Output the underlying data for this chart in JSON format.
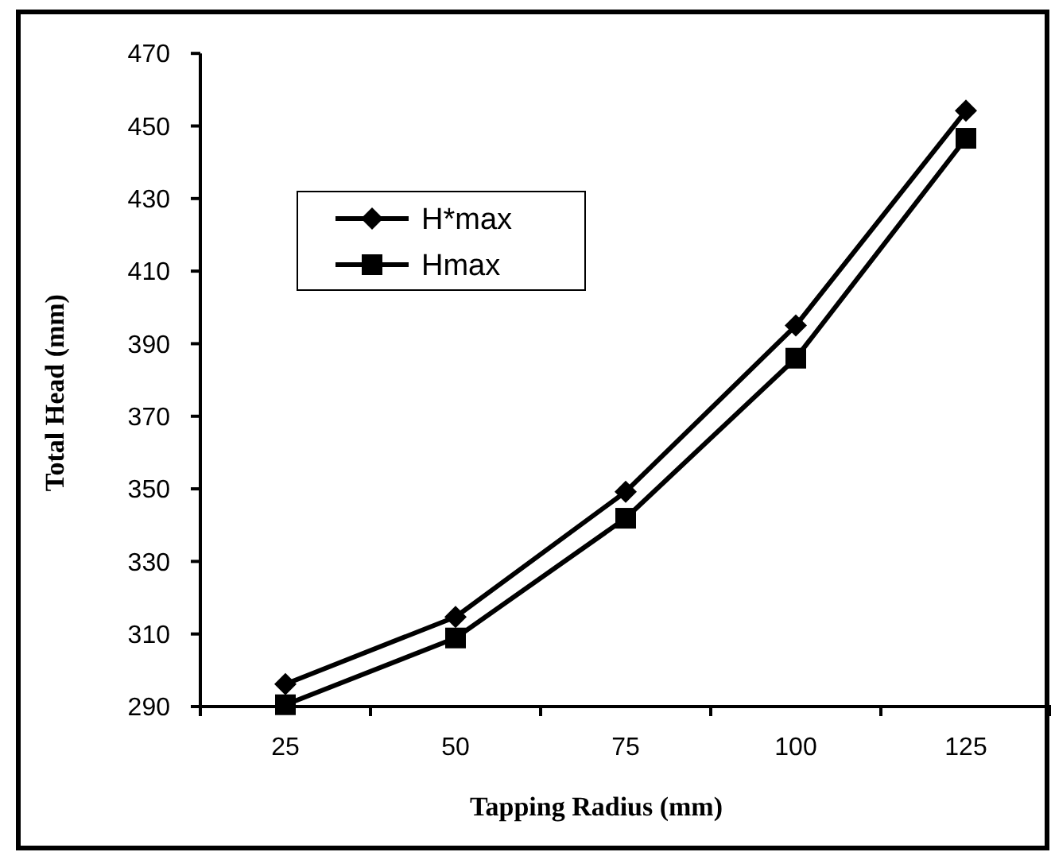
{
  "chart_data": {
    "type": "line",
    "xlabel": "Tapping Radius (mm)",
    "ylabel": "Total Head (mm)",
    "categories": [
      "25",
      "50",
      "75",
      "100",
      "125"
    ],
    "series": [
      {
        "name": "H*max",
        "color": "#000000",
        "marker": "diamond",
        "values": [
          296.2,
          314.7,
          349.2,
          395,
          454.2
        ]
      },
      {
        "name": "Hmax",
        "color": "#000000",
        "marker": "square",
        "values": [
          290.5,
          308.9,
          341.9,
          386,
          446.6
        ]
      }
    ],
    "ylim": [
      290,
      470
    ],
    "yticks": [
      290,
      310,
      330,
      350,
      370,
      390,
      410,
      430,
      450,
      470
    ],
    "grid": false,
    "legend": "top left",
    "line_style": "solid"
  }
}
